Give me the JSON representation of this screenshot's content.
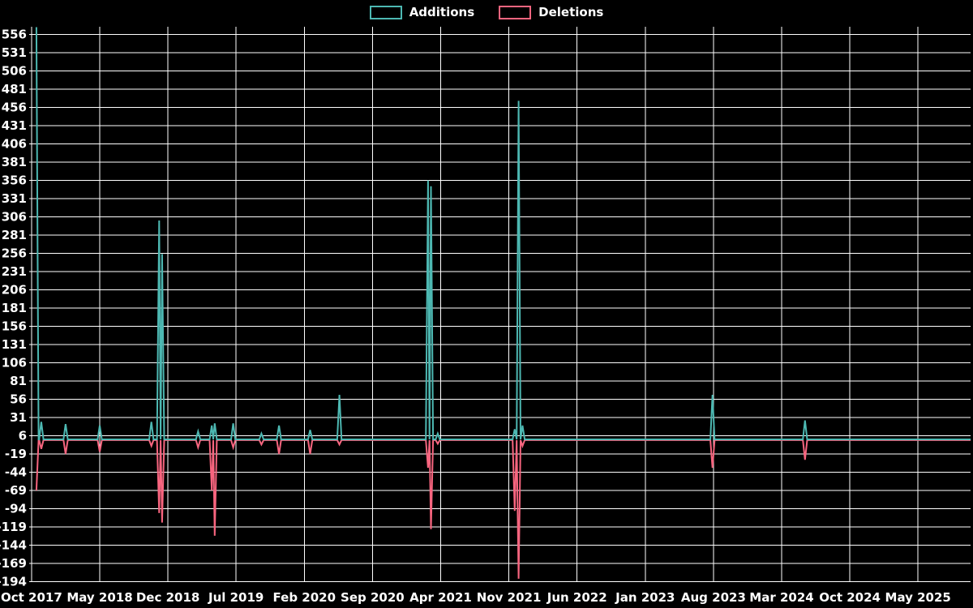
{
  "legend": {
    "additions_label": "Additions",
    "deletions_label": "Deletions"
  },
  "colors": {
    "background": "#000000",
    "grid": "#ffffff",
    "text": "#ffffff",
    "additions": "#4db8b2",
    "deletions": "#f8657f"
  },
  "chart_data": {
    "type": "line",
    "title": "",
    "xlabel": "",
    "ylabel": "",
    "legend_position": "top-center",
    "grid": true,
    "x_tick_labels": [
      "Oct 2017",
      "May 2018",
      "Dec 2018",
      "Jul 2019",
      "Feb 2020",
      "Sep 2020",
      "Apr 2021",
      "Nov 2021",
      "Jun 2022",
      "Jan 2023",
      "Aug 2023",
      "Mar 2024",
      "Oct 2024",
      "May 2025"
    ],
    "x_tick_interval_months": 7,
    "y_ticks": [
      556,
      531,
      506,
      481,
      456,
      431,
      406,
      381,
      356,
      331,
      306,
      281,
      256,
      231,
      206,
      181,
      156,
      131,
      106,
      81,
      56,
      31,
      6,
      -19,
      -44,
      -69,
      -94,
      -119,
      -144,
      -169,
      -194
    ],
    "y_axis": {
      "min": -194,
      "max": 556,
      "step": 25
    },
    "series": [
      {
        "name": "Additions",
        "color": "#4db8b2"
      },
      {
        "name": "Deletions",
        "color": "#f8657f"
      }
    ],
    "baseline": {
      "additions": 1,
      "deletions": 0
    },
    "x_end_month": 96.4,
    "events": [
      {
        "date": "Oct 2017",
        "month": 0.5,
        "additions": 566,
        "deletions": -69
      },
      {
        "date": "Nov 2017",
        "month": 1.0,
        "additions": 25,
        "deletions": -12
      },
      {
        "date": "Jan 2018",
        "month": 3.5,
        "additions": 22,
        "deletions": -19
      },
      {
        "date": "May 2018",
        "month": 7.0,
        "additions": 20,
        "deletions": -16
      },
      {
        "date": "Oct 2018",
        "month": 12.3,
        "additions": 25,
        "deletions": -8
      },
      {
        "date": "Nov 2018",
        "month": 13.1,
        "additions": 301,
        "deletions": -100
      },
      {
        "date": "Nov 2018",
        "month": 13.4,
        "additions": 255,
        "deletions": -113
      },
      {
        "date": "Mar 2019",
        "month": 17.1,
        "additions": 12,
        "deletions": -10
      },
      {
        "date": "Apr 2019",
        "month": 18.5,
        "additions": 20,
        "deletions": -69
      },
      {
        "date": "Apr 2019",
        "month": 18.8,
        "additions": 23,
        "deletions": -131
      },
      {
        "date": "Jun 2019",
        "month": 20.7,
        "additions": 23,
        "deletions": -10
      },
      {
        "date": "Sep 2019",
        "month": 23.6,
        "additions": 9,
        "deletions": -6
      },
      {
        "date": "Nov 2019",
        "month": 25.4,
        "additions": 20,
        "deletions": -19
      },
      {
        "date": "Feb 2020",
        "month": 28.6,
        "additions": 14,
        "deletions": -19
      },
      {
        "date": "May 2020",
        "month": 31.6,
        "additions": 62,
        "deletions": -6
      },
      {
        "date": "Feb 2021",
        "month": 40.7,
        "additions": 356,
        "deletions": -38
      },
      {
        "date": "Mar 2021",
        "month": 41.0,
        "additions": 348,
        "deletions": -122
      },
      {
        "date": "Mar 2021",
        "month": 41.7,
        "additions": 9,
        "deletions": -5
      },
      {
        "date": "Nov 2021",
        "month": 49.6,
        "additions": 15,
        "deletions": -97
      },
      {
        "date": "Nov 2021",
        "month": 50.0,
        "additions": 465,
        "deletions": -190
      },
      {
        "date": "Dec 2021",
        "month": 50.4,
        "additions": 20,
        "deletions": -8
      },
      {
        "date": "Aug 2023",
        "month": 69.9,
        "additions": 62,
        "deletions": -38
      },
      {
        "date": "May 2024",
        "month": 79.4,
        "additions": 27,
        "deletions": -27
      }
    ]
  }
}
